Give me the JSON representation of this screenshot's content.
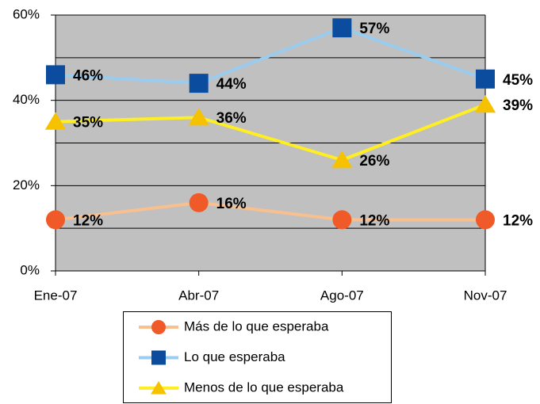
{
  "chart_data": {
    "type": "line",
    "categories": [
      "Ene-07",
      "Abr-07",
      "Ago-07",
      "Nov-07"
    ],
    "series": [
      {
        "name": "Más de lo que esperaba",
        "color": "#f9c08f",
        "marker_color": "#ef5a28",
        "marker": "circle",
        "values": [
          12,
          16,
          12,
          12
        ],
        "value_labels": [
          "12%",
          "16%",
          "12%",
          "12%"
        ]
      },
      {
        "name": "Lo que esperaba",
        "color": "#99ccee",
        "marker_color": "#0b4c9e",
        "marker": "square",
        "values": [
          46,
          44,
          57,
          45
        ],
        "value_labels": [
          "46%",
          "44%",
          "57%",
          "45%"
        ]
      },
      {
        "name": "Menos de lo que esperaba",
        "color": "#ffee22",
        "marker_color": "#f6c200",
        "marker": "triangle",
        "values": [
          35,
          36,
          26,
          39
        ],
        "value_labels": [
          "35%",
          "36%",
          "26%",
          "39%"
        ]
      }
    ],
    "ylim": [
      0,
      60
    ],
    "yticks": [
      {
        "value": 0,
        "label": "0%"
      },
      {
        "value": 20,
        "label": "20%"
      },
      {
        "value": 40,
        "label": "40%"
      },
      {
        "value": 60,
        "label": "60%"
      }
    ],
    "minor_yticks": [
      10,
      30,
      50
    ],
    "grid": true,
    "plot_background": "#c0c0c0",
    "legend": "bottom"
  }
}
